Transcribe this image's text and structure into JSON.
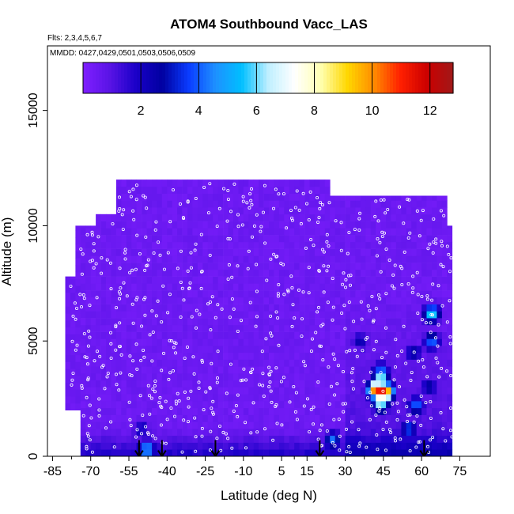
{
  "chart_data": {
    "type": "heatmap",
    "title": "ATOM4 Southbound Vacc_LAS",
    "flights_label": "Flts: 2,3,4,5,6,7",
    "dates_label": "MMDD: 0427,0429,0501,0503,0506,0509",
    "xlabel": "Latitude (deg N)",
    "ylabel": "Altitude (m)",
    "xlim": [
      -87,
      87
    ],
    "ylim": [
      0,
      17800
    ],
    "x_ticks": [
      -85,
      -70,
      -55,
      -40,
      -25,
      -10,
      5,
      15,
      30,
      45,
      60,
      75
    ],
    "y_ticks": [
      0,
      5000,
      10000,
      15000
    ],
    "colorbar": {
      "range": [
        0,
        12.8
      ],
      "ticks": [
        2,
        4,
        6,
        8,
        10,
        12
      ],
      "colors": [
        "#7f1fff",
        "#5a14e6",
        "#1a00c8",
        "#0000a0",
        "#0a3cff",
        "#1e90ff",
        "#00bfff",
        "#bfefff",
        "#ffffff",
        "#ffffb0",
        "#ffd700",
        "#ff8c00",
        "#ff2000",
        "#cc0000",
        "#a01818"
      ]
    },
    "grid": false,
    "background_value": 0.3,
    "domain": {
      "lat_min": -80,
      "lat_max": 72,
      "alt_max": 12000
    },
    "arrow_lats": [
      -51,
      -42,
      -21,
      20,
      61
    ],
    "hotspots": [
      {
        "lat": 44,
        "alt": 2800,
        "value": 12.5
      },
      {
        "lat": 42,
        "alt": 2900,
        "value": 11.0
      },
      {
        "lat": 46,
        "alt": 2800,
        "value": 10.5
      },
      {
        "lat": 44,
        "alt": 3300,
        "value": 7.5
      },
      {
        "lat": 44,
        "alt": 2300,
        "value": 6.5
      },
      {
        "lat": 44,
        "alt": 3700,
        "value": 4.0
      },
      {
        "lat": 64,
        "alt": 6200,
        "value": 6.0
      },
      {
        "lat": 64,
        "alt": 5000,
        "value": 4.0
      },
      {
        "lat": 58,
        "alt": 2200,
        "value": 4.0
      },
      {
        "lat": -48,
        "alt": 300,
        "value": 5.0
      },
      {
        "lat": 25,
        "alt": 700,
        "value": 4.0
      },
      {
        "lat": 55,
        "alt": 1200,
        "value": 3.5
      },
      {
        "lat": 36,
        "alt": 5000,
        "value": 2.2
      },
      {
        "lat": 57,
        "alt": 4500,
        "value": 2.5
      },
      {
        "lat": 63,
        "alt": 3000,
        "value": 2.5
      },
      {
        "lat": -50,
        "alt": 1200,
        "value": 2.0
      }
    ]
  }
}
